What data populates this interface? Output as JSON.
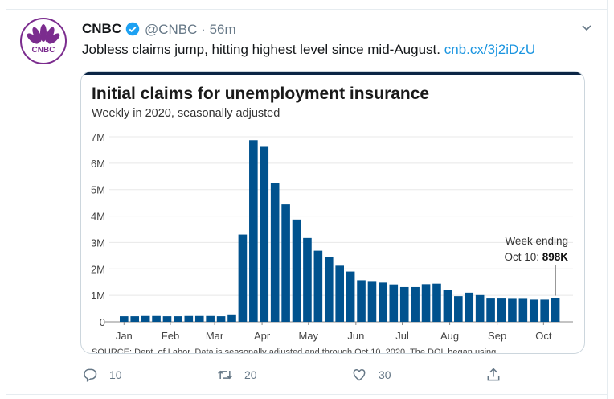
{
  "tweet": {
    "author_name": "CNBC",
    "verified": true,
    "handle": "@CNBC",
    "separator": "·",
    "time": "56m",
    "text": "Jobless claims jump, hitting highest level since mid-August.",
    "link_text": "cnb.cx/3j2iDzU",
    "avatar_logo_text": "CNBC",
    "actions": {
      "reply_count": "10",
      "retweet_count": "20",
      "like_count": "30"
    },
    "icons": [
      "verified-badge-icon",
      "chevron-down-icon",
      "reply-icon",
      "retweet-icon",
      "like-icon",
      "share-icon"
    ]
  },
  "colors": {
    "bar": "#00528e",
    "title_bar": "#0b2545",
    "link": "#1b95e0",
    "verified": "#1da1f2"
  },
  "chart_data": {
    "type": "bar",
    "title": "Initial claims for unemployment insurance",
    "subtitle": "Weekly in 2020, seasonally adjusted",
    "xlabel": "",
    "ylabel": "",
    "ylim": [
      0,
      7000000
    ],
    "y_ticks": [
      {
        "value": 0,
        "label": "0"
      },
      {
        "value": 1000000,
        "label": "1M"
      },
      {
        "value": 2000000,
        "label": "2M"
      },
      {
        "value": 3000000,
        "label": "3M"
      },
      {
        "value": 4000000,
        "label": "4M"
      },
      {
        "value": 5000000,
        "label": "5M"
      },
      {
        "value": 6000000,
        "label": "6M"
      },
      {
        "value": 7000000,
        "label": "7M"
      }
    ],
    "x_ticks": [
      {
        "index": 0,
        "label": "Jan"
      },
      {
        "index": 4.3,
        "label": "Feb"
      },
      {
        "index": 8.4,
        "label": "Mar"
      },
      {
        "index": 12.8,
        "label": "Apr"
      },
      {
        "index": 17.1,
        "label": "May"
      },
      {
        "index": 21.5,
        "label": "Jun"
      },
      {
        "index": 25.8,
        "label": "Jul"
      },
      {
        "index": 30.2,
        "label": "Aug"
      },
      {
        "index": 34.6,
        "label": "Sep"
      },
      {
        "index": 38.9,
        "label": "Oct"
      }
    ],
    "grid": true,
    "values": [
      210000,
      210000,
      220000,
      220000,
      210000,
      210000,
      220000,
      220000,
      220000,
      210000,
      280000,
      3300000,
      6870000,
      6620000,
      5240000,
      4440000,
      3870000,
      3170000,
      2690000,
      2450000,
      2120000,
      1900000,
      1570000,
      1540000,
      1480000,
      1410000,
      1310000,
      1310000,
      1420000,
      1440000,
      1190000,
      970000,
      1100000,
      1010000,
      880000,
      880000,
      870000,
      870000,
      840000,
      840000,
      898000
    ],
    "annotation": {
      "line1": "Week ending",
      "line2_prefix": "Oct 10: ",
      "value_label": "898K"
    },
    "source": "SOURCE: Dept. of Labor. Data is seasonally adjusted and through Oct 10, 2020. The DOL began using"
  }
}
